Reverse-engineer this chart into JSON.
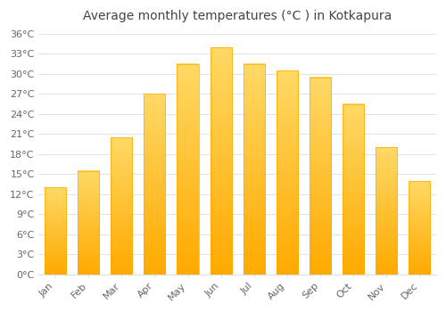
{
  "title": "Average monthly temperatures (°C ) in Kotkapura",
  "months": [
    "Jan",
    "Feb",
    "Mar",
    "Apr",
    "May",
    "Jun",
    "Jul",
    "Aug",
    "Sep",
    "Oct",
    "Nov",
    "Dec"
  ],
  "values": [
    13,
    15.5,
    20.5,
    27,
    31.5,
    34,
    31.5,
    30.5,
    29.5,
    25.5,
    19,
    14
  ],
  "bar_color_bottom": "#FFAA00",
  "bar_color_top": "#FFD966",
  "background_color": "#FFFFFF",
  "grid_color": "#DDDDDD",
  "ylim": [
    0,
    37
  ],
  "yticks": [
    0,
    3,
    6,
    9,
    12,
    15,
    18,
    21,
    24,
    27,
    30,
    33,
    36
  ],
  "title_fontsize": 10,
  "tick_fontsize": 8,
  "title_color": "#444444",
  "tick_color": "#666666",
  "bar_width": 0.65
}
